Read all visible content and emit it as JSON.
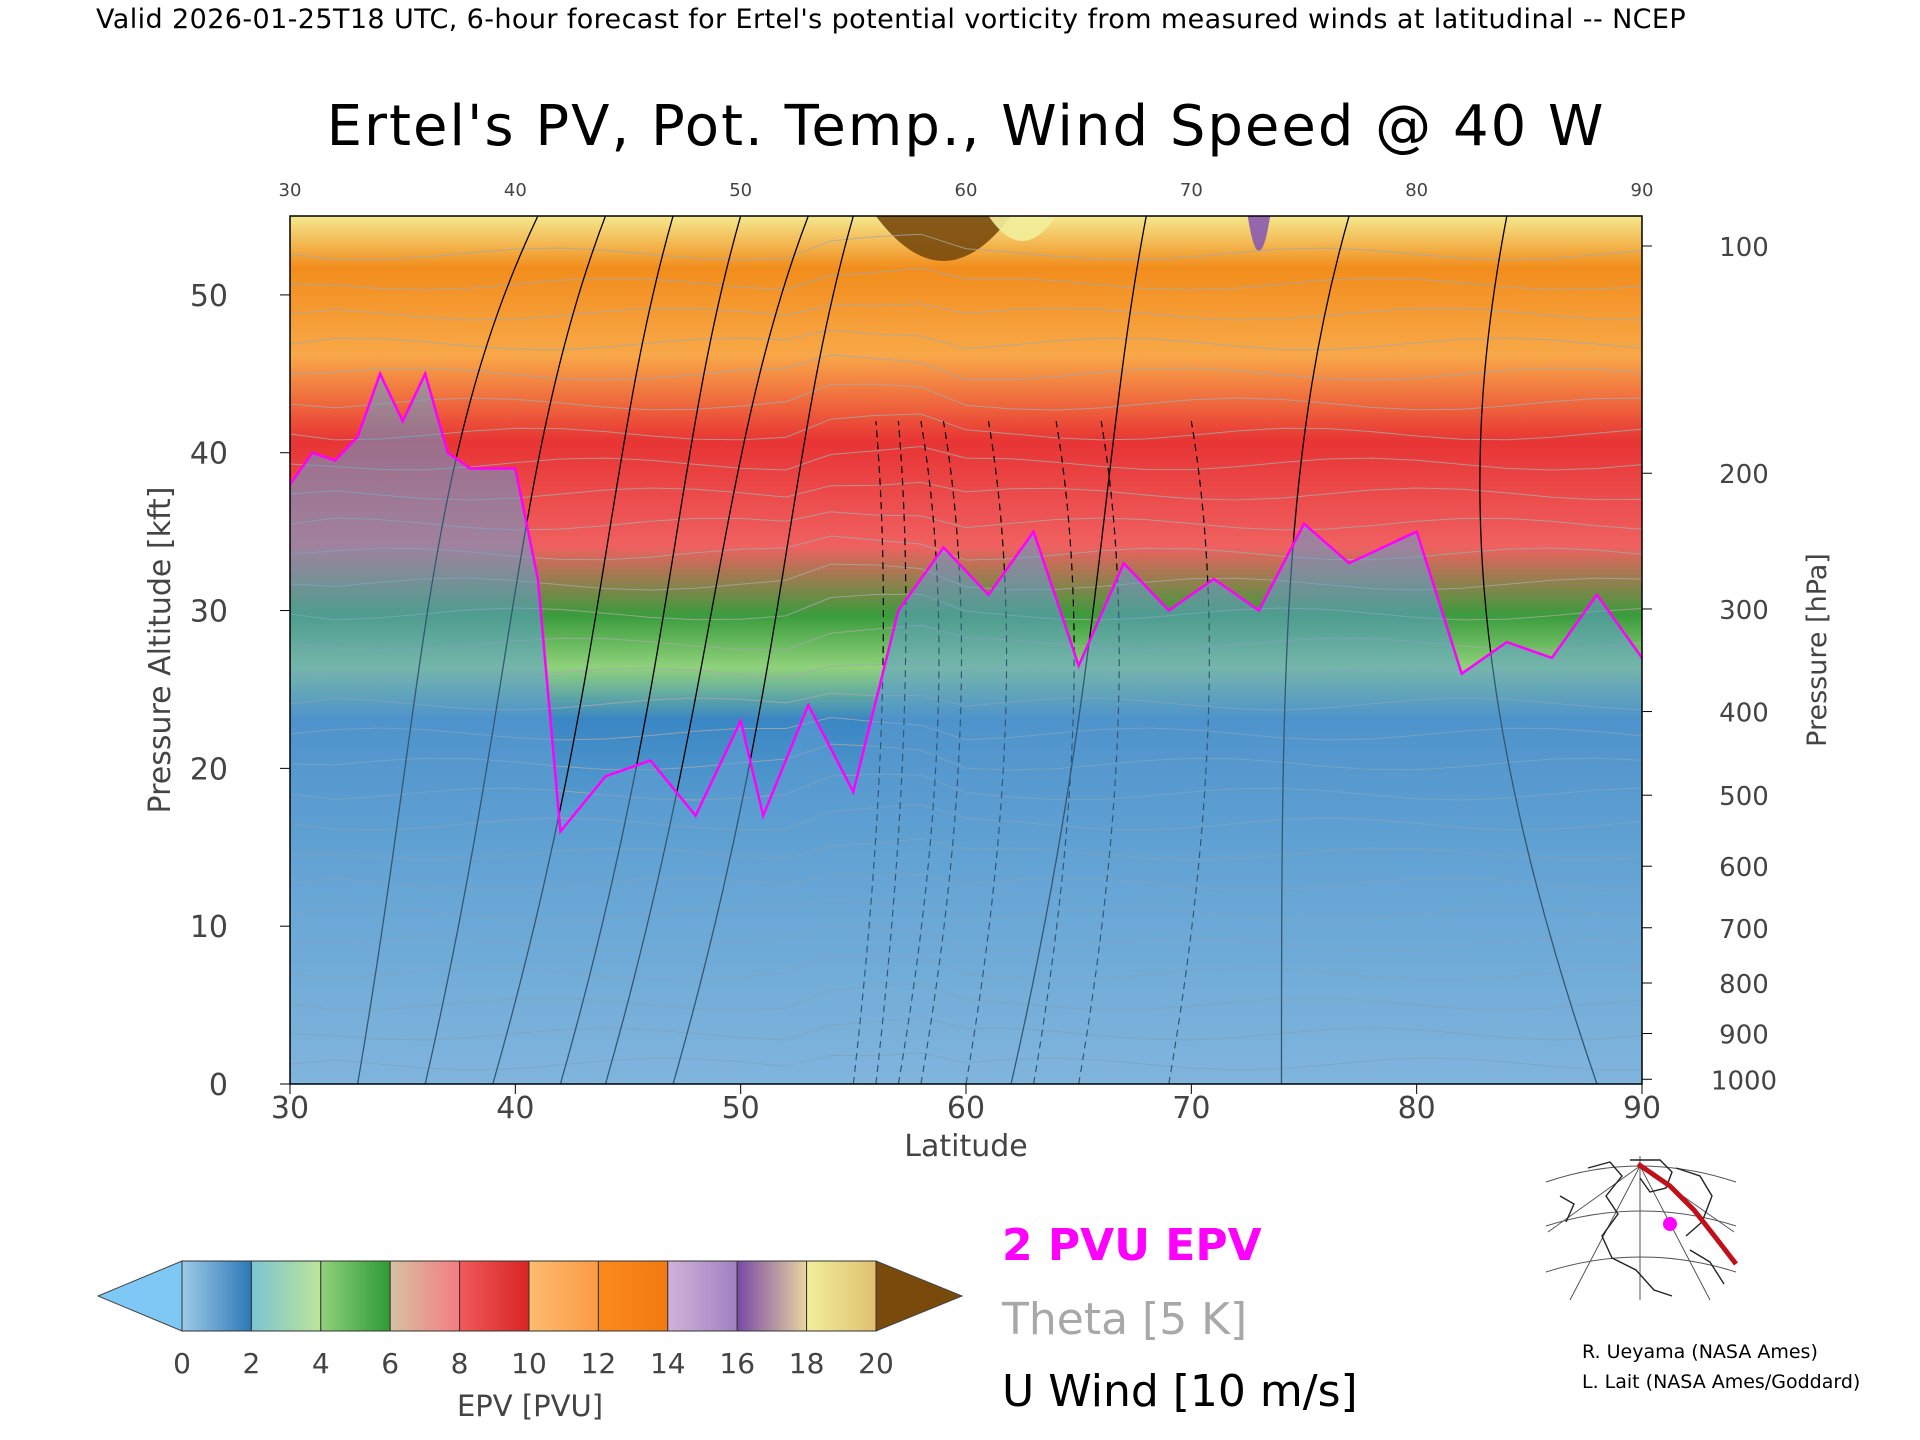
{
  "header": {
    "valid_line": "Valid 2026-01-25T18 UTC, 6-hour forecast for Ertel's potential vorticity from measured winds at latitudinal -- NCEP"
  },
  "chart_data": {
    "type": "heatmap",
    "title": "Ertel's PV, Pot. Temp., Wind Speed @ 40 W",
    "xlabel": "Latitude",
    "ylabel": "Pressure Altitude [kft]",
    "ylabel_right": "Pressure [hPa]",
    "xlim": [
      30,
      90
    ],
    "ylim": [
      0,
      55
    ],
    "x_ticks_bottom": [
      "30",
      "40",
      "50",
      "60",
      "70",
      "80",
      "90"
    ],
    "x_ticks_top": [
      "30",
      "40",
      "50",
      "60",
      "70",
      "80",
      "90"
    ],
    "y_ticks": [
      "0",
      "10",
      "20",
      "30",
      "40",
      "50"
    ],
    "pressure_ticks": [
      {
        "label": "100",
        "kft": 53.1
      },
      {
        "label": "200",
        "kft": 38.7
      },
      {
        "label": "300",
        "kft": 30.1
      },
      {
        "label": "400",
        "kft": 23.6
      },
      {
        "label": "500",
        "kft": 18.3
      },
      {
        "label": "600",
        "kft": 13.8
      },
      {
        "label": "700",
        "kft": 9.9
      },
      {
        "label": "800",
        "kft": 6.4
      },
      {
        "label": "900",
        "kft": 3.2
      },
      {
        "label": "1000",
        "kft": 0.3
      }
    ],
    "colorbar": {
      "label": "EPV [PVU]",
      "ticks": [
        "0",
        "2",
        "4",
        "6",
        "8",
        "10",
        "12",
        "14",
        "16",
        "18",
        "20"
      ],
      "under_color": "#7ec8f6",
      "over_color": "#7a4a0c",
      "segments": [
        {
          "from": 0,
          "to": 2,
          "colors": [
            "#9ecbe6",
            "#2c78b8"
          ]
        },
        {
          "from": 2,
          "to": 4,
          "colors": [
            "#7cc4d0",
            "#bde49a"
          ]
        },
        {
          "from": 4,
          "to": 6,
          "colors": [
            "#8fd27a",
            "#2f9a36"
          ]
        },
        {
          "from": 6,
          "to": 8,
          "colors": [
            "#d6c2a0",
            "#f47c84"
          ]
        },
        {
          "from": 8,
          "to": 10,
          "colors": [
            "#f05a5a",
            "#d92424"
          ]
        },
        {
          "from": 10,
          "to": 12,
          "colors": [
            "#fcbc70",
            "#fb9a44"
          ]
        },
        {
          "from": 12,
          "to": 14,
          "colors": [
            "#fb8a1e",
            "#f27a10"
          ]
        },
        {
          "from": 14,
          "to": 16,
          "colors": [
            "#d2b2d8",
            "#a080c0"
          ]
        },
        {
          "from": 16,
          "to": 18,
          "colors": [
            "#7a4aa6",
            "#e8d4a0"
          ]
        },
        {
          "from": 18,
          "to": 20,
          "colors": [
            "#f2ee9a",
            "#e0c070"
          ]
        }
      ]
    },
    "tropopause_2pvu_kft": [
      {
        "lat": 30,
        "kft": 38
      },
      {
        "lat": 31,
        "kft": 40
      },
      {
        "lat": 32,
        "kft": 39.5
      },
      {
        "lat": 33,
        "kft": 41
      },
      {
        "lat": 34,
        "kft": 45
      },
      {
        "lat": 35,
        "kft": 42
      },
      {
        "lat": 36,
        "kft": 45
      },
      {
        "lat": 37,
        "kft": 40
      },
      {
        "lat": 38,
        "kft": 39
      },
      {
        "lat": 40,
        "kft": 39
      },
      {
        "lat": 41,
        "kft": 32
      },
      {
        "lat": 42,
        "kft": 16
      },
      {
        "lat": 44,
        "kft": 19.5
      },
      {
        "lat": 46,
        "kft": 20.5
      },
      {
        "lat": 48,
        "kft": 17
      },
      {
        "lat": 50,
        "kft": 23
      },
      {
        "lat": 51,
        "kft": 17
      },
      {
        "lat": 53,
        "kft": 24
      },
      {
        "lat": 55,
        "kft": 18.5
      },
      {
        "lat": 57,
        "kft": 30
      },
      {
        "lat": 59,
        "kft": 34
      },
      {
        "lat": 61,
        "kft": 31
      },
      {
        "lat": 63,
        "kft": 35
      },
      {
        "lat": 65,
        "kft": 26.5
      },
      {
        "lat": 67,
        "kft": 33
      },
      {
        "lat": 69,
        "kft": 30
      },
      {
        "lat": 71,
        "kft": 32
      },
      {
        "lat": 73,
        "kft": 30
      },
      {
        "lat": 75,
        "kft": 35.5
      },
      {
        "lat": 77,
        "kft": 33
      },
      {
        "lat": 80,
        "kft": 35
      },
      {
        "lat": 82,
        "kft": 26
      },
      {
        "lat": 84,
        "kft": 28
      },
      {
        "lat": 86,
        "kft": 27
      },
      {
        "lat": 88,
        "kft": 31
      },
      {
        "lat": 90,
        "kft": 27
      }
    ],
    "legend": {
      "epv_line": "2 PVU EPV",
      "theta": "Theta [5 K]",
      "uwind": "U Wind [10 m/s]",
      "epv_color": "#ff00ff",
      "theta_color": "#a8a8a8",
      "uwind_color": "#000000"
    }
  },
  "credits": {
    "line1": "R. Ueyama (NASA Ames)",
    "line2": "L. Lait (NASA Ames/Goddard)"
  }
}
